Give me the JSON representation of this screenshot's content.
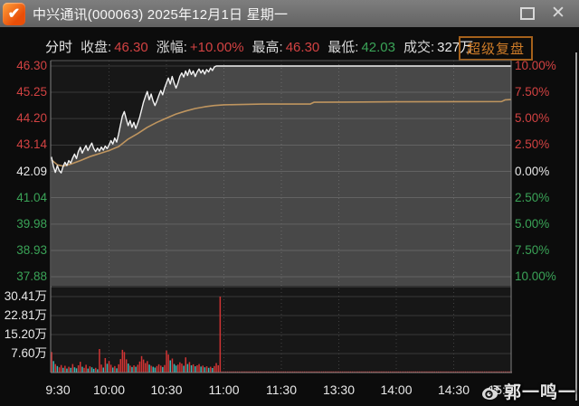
{
  "window": {
    "title": "中兴通讯(000063) 2025年12月1日 星期一",
    "icons": {
      "check": "✔",
      "close": "✕"
    }
  },
  "info": {
    "mode": "分时",
    "close_label": "收盘:",
    "close_value": "46.30",
    "change_label": "涨幅:",
    "change_value": "+10.00%",
    "high_label": "最高:",
    "high_value": "46.30",
    "low_label": "最低:",
    "low_value": "42.03",
    "volume_label": "成交:",
    "volume_value": "327万",
    "replay_button": "超级复盘"
  },
  "watermark": {
    "text": "郭一鸣一"
  },
  "colors": {
    "red": "#d24242",
    "green": "#3aa357",
    "white": "#e8e8e8",
    "price_line": "#f2f2f2",
    "avg_line": "#bf955f",
    "fill": "rgba(255,255,255,0.21)",
    "grid": "#3a3a3a",
    "frame": "#828282",
    "vol_red": "#d03434",
    "vol_cyan": "#3db8b4",
    "accent_orange": "#cf7c28"
  },
  "chart_data": {
    "type": "line",
    "title": "中兴通讯(000063) 分时图 2025-12-01",
    "price_axis": {
      "labels": [
        "46.30",
        "45.25",
        "44.20",
        "43.14",
        "42.09",
        "41.04",
        "39.98",
        "38.93",
        "37.88"
      ],
      "values": [
        46.3,
        45.25,
        44.2,
        43.14,
        42.09,
        41.04,
        39.98,
        38.93,
        37.88
      ],
      "prev_close": 42.09,
      "max": 46.3,
      "min": 37.88
    },
    "pct_axis": {
      "labels": [
        "10.00%",
        "7.50%",
        "5.00%",
        "2.50%",
        "0.00%",
        "2.50%",
        "5.00%",
        "7.50%",
        "10.00%"
      ]
    },
    "volume_axis": {
      "labels": [
        "30.41万",
        "22.81万",
        "15.20万",
        "7.60万"
      ],
      "values": [
        30.41,
        22.81,
        15.2,
        7.6
      ]
    },
    "time_axis": {
      "labels": [
        "9:30",
        "10:00",
        "10:30",
        "11:00",
        "11:30",
        "13:30",
        "14:00",
        "14:30",
        "15:00"
      ],
      "minutes": [
        0,
        30,
        60,
        90,
        120,
        150,
        180,
        210,
        240
      ],
      "total_minutes": 240
    },
    "price_series": [
      [
        0,
        42.65
      ],
      [
        1,
        42.28
      ],
      [
        2,
        42.05
      ],
      [
        3,
        42.32
      ],
      [
        4,
        42.12
      ],
      [
        5,
        42.03
      ],
      [
        6,
        42.28
      ],
      [
        7,
        42.45
      ],
      [
        8,
        42.32
      ],
      [
        9,
        42.52
      ],
      [
        10,
        42.42
      ],
      [
        11,
        42.62
      ],
      [
        12,
        42.78
      ],
      [
        13,
        42.6
      ],
      [
        14,
        42.88
      ],
      [
        15,
        43.05
      ],
      [
        16,
        42.82
      ],
      [
        17,
        42.98
      ],
      [
        18,
        43.12
      ],
      [
        19,
        42.92
      ],
      [
        20,
        43.08
      ],
      [
        21,
        43.22
      ],
      [
        22,
        43.0
      ],
      [
        23,
        42.88
      ],
      [
        24,
        43.02
      ],
      [
        25,
        42.9
      ],
      [
        26,
        43.06
      ],
      [
        27,
        42.94
      ],
      [
        28,
        43.1
      ],
      [
        29,
        43.0
      ],
      [
        30,
        43.14
      ],
      [
        31,
        43.32
      ],
      [
        32,
        43.18
      ],
      [
        33,
        43.42
      ],
      [
        34,
        43.26
      ],
      [
        35,
        43.58
      ],
      [
        36,
        43.95
      ],
      [
        37,
        44.3
      ],
      [
        38,
        44.48
      ],
      [
        39,
        44.18
      ],
      [
        40,
        43.92
      ],
      [
        41,
        44.12
      ],
      [
        42,
        43.85
      ],
      [
        43,
        44.05
      ],
      [
        44,
        43.8
      ],
      [
        45,
        44.02
      ],
      [
        46,
        44.25
      ],
      [
        47,
        44.55
      ],
      [
        48,
        44.85
      ],
      [
        49,
        45.08
      ],
      [
        50,
        45.28
      ],
      [
        51,
        44.95
      ],
      [
        52,
        45.18
      ],
      [
        53,
        44.9
      ],
      [
        54,
        44.72
      ],
      [
        55,
        44.9
      ],
      [
        56,
        45.12
      ],
      [
        57,
        45.32
      ],
      [
        58,
        45.15
      ],
      [
        59,
        45.42
      ],
      [
        60,
        45.62
      ],
      [
        61,
        45.82
      ],
      [
        62,
        45.58
      ],
      [
        63,
        45.88
      ],
      [
        64,
        45.62
      ],
      [
        65,
        45.42
      ],
      [
        66,
        45.62
      ],
      [
        67,
        45.88
      ],
      [
        68,
        46.02
      ],
      [
        69,
        45.86
      ],
      [
        70,
        46.1
      ],
      [
        71,
        45.92
      ],
      [
        72,
        46.16
      ],
      [
        73,
        45.96
      ],
      [
        74,
        46.1
      ],
      [
        75,
        45.88
      ],
      [
        76,
        46.06
      ],
      [
        77,
        46.18
      ],
      [
        78,
        46.02
      ],
      [
        79,
        46.14
      ],
      [
        80,
        45.98
      ],
      [
        81,
        46.16
      ],
      [
        82,
        46.06
      ],
      [
        83,
        46.22
      ],
      [
        84,
        46.12
      ],
      [
        85,
        46.26
      ],
      [
        86,
        46.3
      ],
      [
        88,
        46.3
      ],
      [
        240,
        46.3
      ]
    ],
    "avg_series": [
      [
        0,
        42.55
      ],
      [
        3,
        42.35
      ],
      [
        6,
        42.3
      ],
      [
        10,
        42.38
      ],
      [
        15,
        42.52
      ],
      [
        20,
        42.68
      ],
      [
        25,
        42.8
      ],
      [
        30,
        42.92
      ],
      [
        35,
        43.08
      ],
      [
        40,
        43.38
      ],
      [
        45,
        43.6
      ],
      [
        50,
        43.85
      ],
      [
        55,
        44.05
      ],
      [
        60,
        44.22
      ],
      [
        65,
        44.38
      ],
      [
        70,
        44.5
      ],
      [
        75,
        44.6
      ],
      [
        80,
        44.67
      ],
      [
        85,
        44.72
      ],
      [
        90,
        44.75
      ],
      [
        110,
        44.78
      ],
      [
        135,
        44.78
      ],
      [
        137,
        44.85
      ],
      [
        180,
        44.87
      ],
      [
        235,
        44.88
      ],
      [
        237,
        44.95
      ],
      [
        240,
        44.96
      ]
    ],
    "volume_bars": [
      [
        0,
        8.2,
        "r"
      ],
      [
        1,
        4.6,
        "c"
      ],
      [
        2,
        3.4,
        "r"
      ],
      [
        3,
        2.6,
        "c"
      ],
      [
        4,
        2.1,
        "r"
      ],
      [
        5,
        3.0,
        "r"
      ],
      [
        6,
        1.9,
        "c"
      ],
      [
        7,
        2.7,
        "r"
      ],
      [
        8,
        1.6,
        "c"
      ],
      [
        9,
        2.3,
        "r"
      ],
      [
        10,
        1.9,
        "c"
      ],
      [
        11,
        3.4,
        "r"
      ],
      [
        12,
        2.1,
        "c"
      ],
      [
        13,
        1.7,
        "c"
      ],
      [
        14,
        2.9,
        "r"
      ],
      [
        15,
        4.3,
        "r"
      ],
      [
        16,
        2.3,
        "c"
      ],
      [
        17,
        1.9,
        "r"
      ],
      [
        18,
        3.1,
        "r"
      ],
      [
        19,
        1.6,
        "c"
      ],
      [
        20,
        2.5,
        "r"
      ],
      [
        21,
        2.1,
        "c"
      ],
      [
        22,
        1.5,
        "c"
      ],
      [
        23,
        1.9,
        "r"
      ],
      [
        24,
        1.3,
        "c"
      ],
      [
        25,
        9.4,
        "r"
      ],
      [
        26,
        3.2,
        "r"
      ],
      [
        27,
        2.0,
        "c"
      ],
      [
        28,
        5.8,
        "r"
      ],
      [
        29,
        3.5,
        "c"
      ],
      [
        30,
        4.6,
        "r"
      ],
      [
        31,
        3.1,
        "r"
      ],
      [
        32,
        2.0,
        "c"
      ],
      [
        33,
        2.6,
        "r"
      ],
      [
        34,
        1.7,
        "c"
      ],
      [
        35,
        3.3,
        "r"
      ],
      [
        36,
        5.4,
        "r"
      ],
      [
        37,
        9.1,
        "r"
      ],
      [
        38,
        8.2,
        "r"
      ],
      [
        39,
        5.3,
        "r"
      ],
      [
        40,
        3.6,
        "c"
      ],
      [
        41,
        2.8,
        "r"
      ],
      [
        42,
        2.2,
        "c"
      ],
      [
        43,
        2.9,
        "r"
      ],
      [
        44,
        2.3,
        "c"
      ],
      [
        45,
        3.1,
        "r"
      ],
      [
        46,
        4.4,
        "r"
      ],
      [
        47,
        6.6,
        "r"
      ],
      [
        48,
        5.2,
        "r"
      ],
      [
        49,
        3.8,
        "r"
      ],
      [
        50,
        4.6,
        "r"
      ],
      [
        51,
        3.2,
        "c"
      ],
      [
        52,
        2.7,
        "r"
      ],
      [
        53,
        2.3,
        "c"
      ],
      [
        54,
        2.0,
        "c"
      ],
      [
        55,
        2.6,
        "r"
      ],
      [
        56,
        3.3,
        "r"
      ],
      [
        57,
        2.8,
        "r"
      ],
      [
        58,
        2.2,
        "c"
      ],
      [
        59,
        3.0,
        "r"
      ],
      [
        60,
        8.8,
        "r"
      ],
      [
        61,
        7.2,
        "r"
      ],
      [
        62,
        4.9,
        "c"
      ],
      [
        63,
        5.6,
        "r"
      ],
      [
        64,
        3.4,
        "c"
      ],
      [
        65,
        2.8,
        "c"
      ],
      [
        66,
        3.2,
        "r"
      ],
      [
        67,
        4.1,
        "r"
      ],
      [
        68,
        3.6,
        "r"
      ],
      [
        69,
        2.7,
        "c"
      ],
      [
        70,
        6.1,
        "r"
      ],
      [
        71,
        3.4,
        "c"
      ],
      [
        72,
        4.2,
        "r"
      ],
      [
        73,
        2.9,
        "c"
      ],
      [
        74,
        3.3,
        "r"
      ],
      [
        75,
        2.5,
        "c"
      ],
      [
        76,
        2.9,
        "r"
      ],
      [
        77,
        3.4,
        "r"
      ],
      [
        78,
        2.4,
        "c"
      ],
      [
        79,
        2.8,
        "r"
      ],
      [
        80,
        2.1,
        "c"
      ],
      [
        81,
        2.5,
        "r"
      ],
      [
        82,
        1.9,
        "c"
      ],
      [
        83,
        2.3,
        "r"
      ],
      [
        84,
        1.8,
        "c"
      ],
      [
        85,
        2.6,
        "r"
      ],
      [
        86,
        3.8,
        "r"
      ],
      [
        87,
        2.9,
        "r"
      ],
      [
        88,
        30.41,
        "r"
      ]
    ],
    "volume_fill": {
      "from": 89,
      "to": 240,
      "value": 0.45,
      "color": "r"
    }
  }
}
